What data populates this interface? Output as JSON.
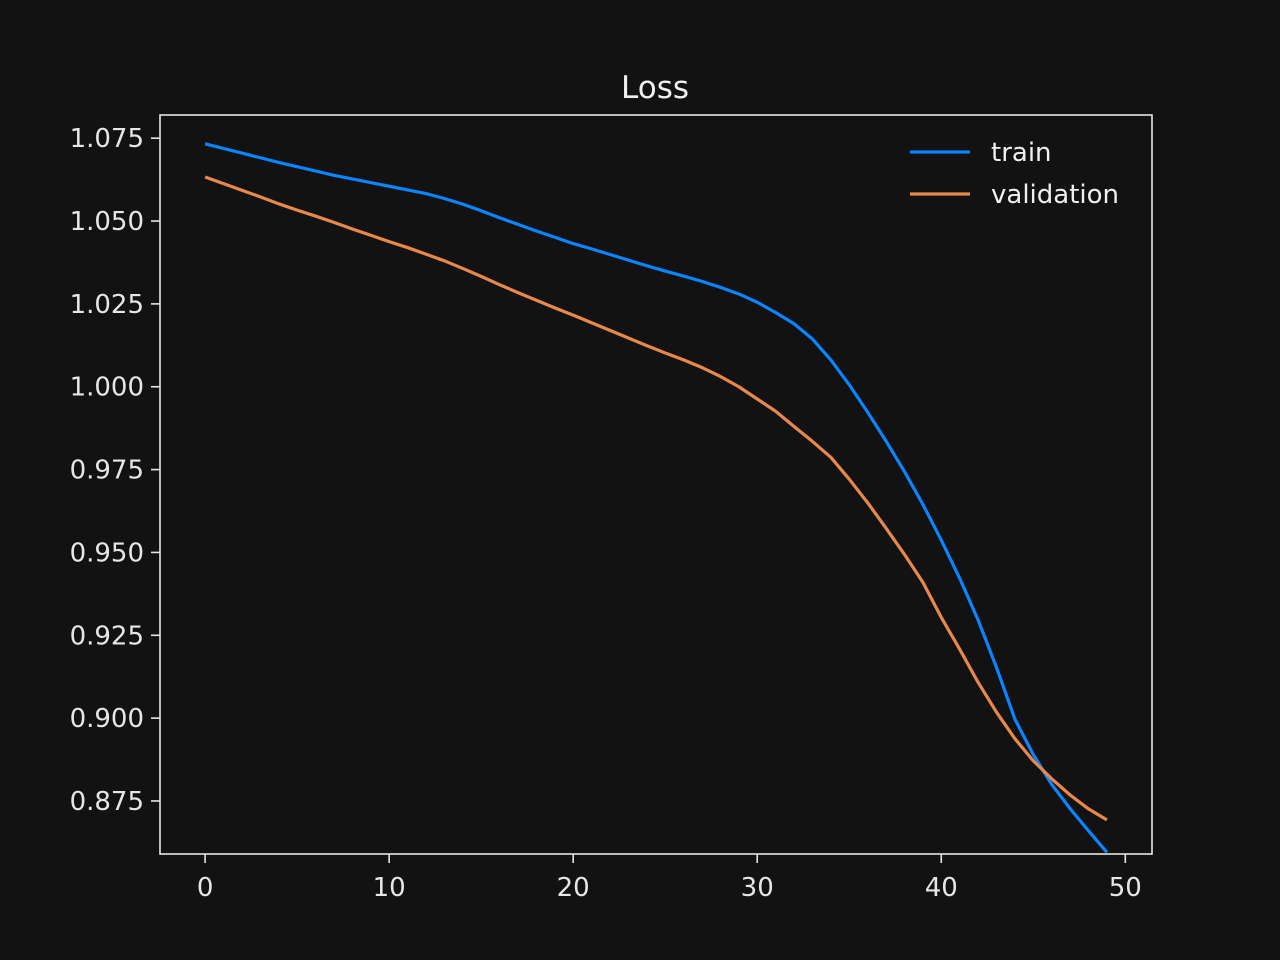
{
  "chart_data": {
    "type": "line",
    "title": "Loss",
    "xlabel": "",
    "ylabel": "",
    "xlim": [
      -2.45,
      51.45
    ],
    "ylim": [
      0.859,
      1.082
    ],
    "xticks": [
      0,
      10,
      20,
      30,
      40,
      50
    ],
    "xtick_labels": [
      "0",
      "10",
      "20",
      "30",
      "40",
      "50"
    ],
    "yticks": [
      0.875,
      0.9,
      0.925,
      0.95,
      0.975,
      1.0,
      1.025,
      1.05,
      1.075
    ],
    "ytick_labels": [
      "0.875",
      "0.900",
      "0.925",
      "0.950",
      "0.975",
      "1.000",
      "1.025",
      "1.050",
      "1.075"
    ],
    "grid": false,
    "legend_position": "top-right",
    "x": [
      0,
      1,
      2,
      3,
      4,
      5,
      6,
      7,
      8,
      9,
      10,
      11,
      12,
      13,
      14,
      15,
      16,
      17,
      18,
      19,
      20,
      21,
      22,
      23,
      24,
      25,
      26,
      27,
      28,
      29,
      30,
      31,
      32,
      33,
      34,
      35,
      36,
      37,
      38,
      39,
      40,
      41,
      42,
      43,
      44,
      45,
      46,
      47,
      48,
      49
    ],
    "series": [
      {
        "name": "train",
        "color": "#0a84ff",
        "values": [
          1.0733,
          1.0719,
          1.0705,
          1.0691,
          1.0677,
          1.0664,
          1.0651,
          1.0638,
          1.0627,
          1.0616,
          1.0605,
          1.0594,
          1.0583,
          1.0568,
          1.0551,
          1.0531,
          1.051,
          1.049,
          1.047,
          1.0451,
          1.0432,
          1.0416,
          1.0399,
          1.0382,
          1.0365,
          1.0349,
          1.0334,
          1.0318,
          1.03,
          1.028,
          1.0255,
          1.0224,
          1.019,
          1.0144,
          1.0081,
          1.0006,
          0.9923,
          0.9836,
          0.9744,
          0.9645,
          0.9537,
          0.9422,
          0.9296,
          0.9153,
          0.8997,
          0.889,
          0.88,
          0.8727,
          0.866,
          0.8595
        ]
      },
      {
        "name": "validation",
        "color": "#e8884a",
        "values": [
          1.0633,
          1.0613,
          1.0593,
          1.0573,
          1.0552,
          1.0533,
          1.0515,
          1.0496,
          1.0476,
          1.0457,
          1.0438,
          1.042,
          1.04,
          1.038,
          1.0357,
          1.0333,
          1.0308,
          1.0284,
          1.0261,
          1.0238,
          1.0216,
          1.0193,
          1.017,
          1.0147,
          1.0124,
          1.0102,
          1.0081,
          1.0058,
          1.0031,
          1.0,
          0.9963,
          0.9926,
          0.988,
          0.9835,
          0.9787,
          0.9721,
          0.965,
          0.9573,
          0.9494,
          0.941,
          0.9304,
          0.9208,
          0.9108,
          0.9018,
          0.8938,
          0.8871,
          0.8817,
          0.8768,
          0.8726,
          0.8693
        ]
      }
    ]
  }
}
